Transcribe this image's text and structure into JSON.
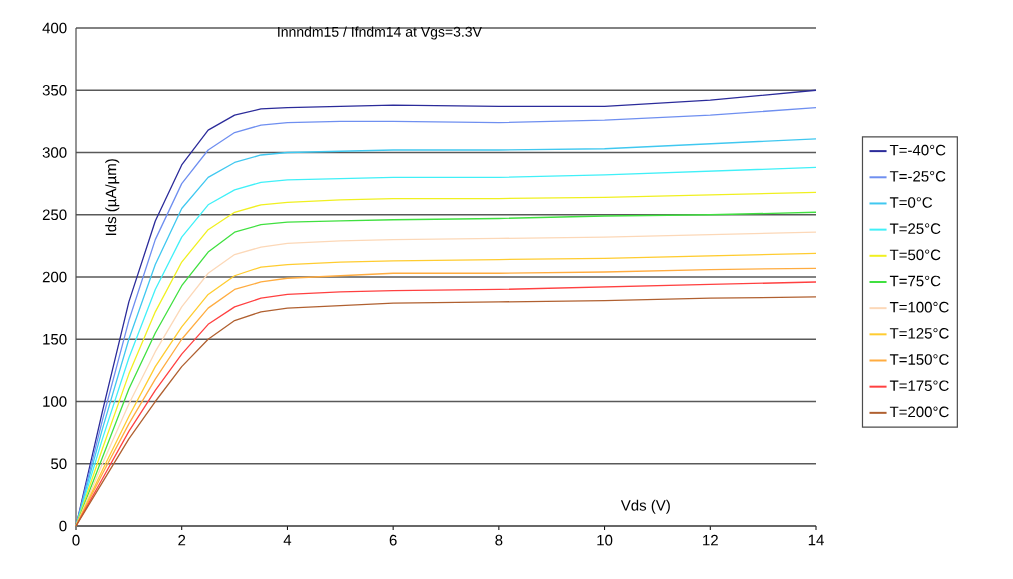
{
  "chart_data": {
    "type": "line",
    "title": "Innndm15 / Ifndm14 at Vgs=3.3V",
    "xlabel": "Vds (V)",
    "ylabel": "Ids (µA/µm)",
    "x": [
      0,
      0.5,
      1,
      1.5,
      2,
      2.5,
      3,
      3.5,
      4,
      5,
      6,
      8,
      10,
      12,
      14
    ],
    "series": [
      {
        "name": "T=-40°C",
        "color": "#2b2b9a",
        "values": [
          0,
          92,
          180,
          245,
          290,
          318,
          330,
          335,
          336,
          337,
          338,
          337,
          337,
          342,
          350
        ]
      },
      {
        "name": "T=-25°C",
        "color": "#6f8ff0",
        "values": [
          0,
          85,
          165,
          230,
          275,
          302,
          316,
          322,
          324,
          325,
          325,
          324,
          326,
          330,
          336
        ]
      },
      {
        "name": "T=0°C",
        "color": "#40c8f0",
        "values": [
          0,
          78,
          150,
          210,
          255,
          280,
          292,
          298,
          300,
          301,
          302,
          302,
          303,
          307,
          311
        ]
      },
      {
        "name": "T=25°C",
        "color": "#40f0f8",
        "values": [
          0,
          70,
          135,
          190,
          232,
          258,
          270,
          276,
          278,
          279,
          280,
          280,
          282,
          285,
          288
        ]
      },
      {
        "name": "T=50°C",
        "color": "#f0f020",
        "values": [
          0,
          62,
          122,
          172,
          212,
          238,
          252,
          258,
          260,
          262,
          263,
          263,
          264,
          266,
          268
        ]
      },
      {
        "name": "T=75°C",
        "color": "#40e040",
        "values": [
          0,
          55,
          110,
          155,
          193,
          220,
          236,
          242,
          244,
          245,
          246,
          247,
          249,
          250,
          252
        ]
      },
      {
        "name": "T=100°C",
        "color": "#fcd8b8",
        "values": [
          0,
          50,
          98,
          140,
          176,
          203,
          218,
          224,
          227,
          229,
          230,
          231,
          232,
          234,
          236
        ]
      },
      {
        "name": "T=125°C",
        "color": "#ffcc30",
        "values": [
          0,
          45,
          88,
          128,
          160,
          186,
          201,
          208,
          210,
          212,
          213,
          214,
          215,
          217,
          219
        ]
      },
      {
        "name": "T=150°C",
        "color": "#ffac40",
        "values": [
          0,
          42,
          82,
          118,
          150,
          175,
          190,
          196,
          199,
          201,
          203,
          203,
          204,
          206,
          207
        ]
      },
      {
        "name": "T=175°C",
        "color": "#ff4040",
        "values": [
          0,
          38,
          76,
          109,
          138,
          162,
          176,
          183,
          186,
          188,
          189,
          190,
          192,
          194,
          196
        ]
      },
      {
        "name": "T=200°C",
        "color": "#b06030",
        "values": [
          0,
          35,
          70,
          100,
          128,
          150,
          165,
          172,
          175,
          177,
          179,
          180,
          181,
          183,
          184
        ]
      }
    ],
    "xlim": [
      0,
      14
    ],
    "xticks": [
      0,
      2,
      4,
      6,
      8,
      10,
      12,
      14
    ],
    "ylim": [
      0,
      400
    ],
    "yticks": [
      0,
      50,
      100,
      150,
      200,
      250,
      300,
      350,
      400
    ],
    "grid": "y",
    "legend": "right",
    "marker": "none",
    "line_style": "solid"
  }
}
